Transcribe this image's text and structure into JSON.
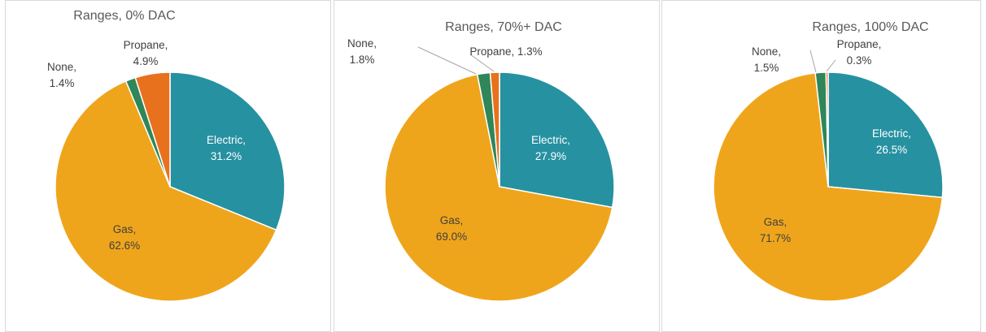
{
  "chart_data": [
    {
      "type": "pie",
      "title": "Ranges, 0% DAC",
      "slices": [
        {
          "name": "Electric",
          "value": 31.2,
          "label": "Electric,",
          "value_label": "31.2%",
          "color": "#2691A1"
        },
        {
          "name": "Gas",
          "value": 62.6,
          "label": "Gas,",
          "value_label": "62.6%",
          "color": "#EFA51B"
        },
        {
          "name": "None",
          "value": 1.4,
          "label": "None,",
          "value_label": "1.4%",
          "color": "#2E8659"
        },
        {
          "name": "Propane",
          "value": 4.9,
          "label": "Propane,",
          "value_label": "4.9%",
          "color": "#E8711E"
        }
      ]
    },
    {
      "type": "pie",
      "title": "Ranges, 70%+ DAC",
      "slices": [
        {
          "name": "Electric",
          "value": 27.9,
          "label": "Electric,",
          "value_label": "27.9%",
          "color": "#2691A1"
        },
        {
          "name": "Gas",
          "value": 69.0,
          "label": "Gas,",
          "value_label": "69.0%",
          "color": "#EFA51B"
        },
        {
          "name": "None",
          "value": 1.8,
          "label": "None,",
          "value_label": "1.8%",
          "color": "#2E8659"
        },
        {
          "name": "Propane",
          "value": 1.3,
          "label": "Propane, 1.3%",
          "value_label": "",
          "color": "#E8711E"
        }
      ]
    },
    {
      "type": "pie",
      "title": "Ranges, 100% DAC",
      "slices": [
        {
          "name": "Electric",
          "value": 26.5,
          "label": "Electric,",
          "value_label": "26.5%",
          "color": "#2691A1"
        },
        {
          "name": "Gas",
          "value": 71.7,
          "label": "Gas,",
          "value_label": "71.7%",
          "color": "#EFA51B"
        },
        {
          "name": "None",
          "value": 1.5,
          "label": "None,",
          "value_label": "1.5%",
          "color": "#2E8659"
        },
        {
          "name": "Propane",
          "value": 0.3,
          "label": "Propane,",
          "value_label": "0.3%",
          "color": "#E8711E"
        }
      ]
    }
  ]
}
